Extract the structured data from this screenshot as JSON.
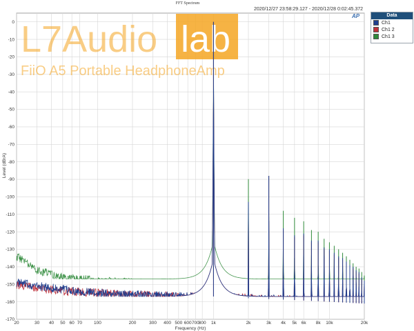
{
  "chart_data": {
    "type": "line",
    "title": "FFT Spectrum",
    "timestamp": "2020/12/27 23:58:29.127 - 2020/12/28 0:02:45.372",
    "xlabel": "Frequency (Hz)",
    "ylabel": "Level (dBrA)",
    "x_scale": "log",
    "xlim": [
      20,
      20000
    ],
    "ylim": [
      -170,
      5
    ],
    "x_ticks": [
      {
        "v": 20,
        "label": "20"
      },
      {
        "v": 30,
        "label": "30"
      },
      {
        "v": 40,
        "label": "40"
      },
      {
        "v": 50,
        "label": "50"
      },
      {
        "v": 60,
        "label": "60"
      },
      {
        "v": 70,
        "label": "70"
      },
      {
        "v": 100,
        "label": "100"
      },
      {
        "v": 200,
        "label": "200"
      },
      {
        "v": 300,
        "label": "300"
      },
      {
        "v": 400,
        "label": "400"
      },
      {
        "v": 500,
        "label": "500"
      },
      {
        "v": 600,
        "label": "600"
      },
      {
        "v": 700,
        "label": "700"
      },
      {
        "v": 800,
        "label": "800"
      },
      {
        "v": 1000,
        "label": "1k"
      },
      {
        "v": 2000,
        "label": "2k"
      },
      {
        "v": 3000,
        "label": "3k"
      },
      {
        "v": 4000,
        "label": "4k"
      },
      {
        "v": 5000,
        "label": "5k"
      },
      {
        "v": 6000,
        "label": "6k"
      },
      {
        "v": 8000,
        "label": "8k"
      },
      {
        "v": 10000,
        "label": "10k"
      },
      {
        "v": 20000,
        "label": "20k"
      }
    ],
    "y_ticks": [
      0,
      -10,
      -20,
      -30,
      -40,
      -50,
      -60,
      -70,
      -80,
      -90,
      -100,
      -110,
      -120,
      -130,
      -140,
      -150,
      -160,
      -170
    ],
    "grid": true,
    "legend_placement": "top-right-outside",
    "legend_title": "Data",
    "fundamental_hz": 1000,
    "series": [
      {
        "name": "Ch1",
        "color": "#1f3f8f",
        "noise_floor": [
          [
            20,
            -149
          ],
          [
            30,
            -151
          ],
          [
            50,
            -153
          ],
          [
            100,
            -155
          ],
          [
            200,
            -156
          ],
          [
            500,
            -157
          ],
          [
            1000,
            -157
          ],
          [
            2000,
            -158
          ],
          [
            5000,
            -159
          ],
          [
            10000,
            -160
          ],
          [
            20000,
            -161
          ]
        ],
        "peaks": [
          [
            1000,
            0
          ],
          [
            2000,
            -103
          ],
          [
            3000,
            -88
          ],
          [
            4000,
            -118
          ],
          [
            5000,
            -122
          ],
          [
            6000,
            -121
          ],
          [
            7000,
            -125
          ],
          [
            8000,
            -125
          ],
          [
            9000,
            -129
          ],
          [
            10000,
            -130
          ],
          [
            11000,
            -132
          ],
          [
            12000,
            -134
          ],
          [
            13000,
            -135
          ],
          [
            14000,
            -137
          ],
          [
            15000,
            -139
          ],
          [
            16000,
            -140
          ],
          [
            17000,
            -142
          ],
          [
            18000,
            -143
          ],
          [
            19000,
            -146
          ],
          [
            20000,
            -148
          ]
        ]
      },
      {
        "name": "Ch1 2",
        "color": "#c0303a",
        "noise_floor": [
          [
            20,
            -150
          ],
          [
            30,
            -152
          ],
          [
            50,
            -154
          ],
          [
            100,
            -155
          ],
          [
            200,
            -156
          ],
          [
            500,
            -157
          ],
          [
            1000,
            -157
          ],
          [
            2000,
            -158
          ],
          [
            5000,
            -159
          ],
          [
            10000,
            -160
          ],
          [
            20000,
            -161
          ]
        ],
        "peaks": [
          [
            1000,
            0
          ],
          [
            2000,
            -103
          ],
          [
            3000,
            -88
          ],
          [
            4000,
            -119
          ],
          [
            5000,
            -123
          ],
          [
            6000,
            -122
          ],
          [
            7000,
            -126
          ],
          [
            8000,
            -126
          ],
          [
            9000,
            -130
          ],
          [
            10000,
            -131
          ],
          [
            11000,
            -133
          ],
          [
            12000,
            -135
          ],
          [
            13000,
            -136
          ],
          [
            14000,
            -138
          ],
          [
            15000,
            -140
          ],
          [
            16000,
            -141
          ],
          [
            17000,
            -143
          ],
          [
            18000,
            -144
          ],
          [
            19000,
            -147
          ],
          [
            20000,
            -149
          ]
        ]
      },
      {
        "name": "Ch1 3",
        "color": "#2f8a3a",
        "noise_floor": [
          [
            20,
            -134
          ],
          [
            25,
            -138
          ],
          [
            30,
            -142
          ],
          [
            50,
            -146
          ],
          [
            100,
            -148
          ],
          [
            200,
            -149
          ],
          [
            500,
            -151
          ],
          [
            800,
            -149
          ],
          [
            1000,
            -147
          ],
          [
            1500,
            -151
          ],
          [
            2000,
            -150
          ],
          [
            3000,
            -152
          ],
          [
            5000,
            -153
          ],
          [
            10000,
            -155
          ],
          [
            20000,
            -156
          ]
        ],
        "peaks": [
          [
            1000,
            0
          ],
          [
            2000,
            -90
          ],
          [
            3000,
            -88
          ],
          [
            4000,
            -108
          ],
          [
            5000,
            -112
          ],
          [
            6000,
            -114
          ],
          [
            7000,
            -119
          ],
          [
            8000,
            -120
          ],
          [
            9000,
            -124
          ],
          [
            10000,
            -126
          ],
          [
            11000,
            -128
          ],
          [
            12000,
            -130
          ],
          [
            13000,
            -132
          ],
          [
            14000,
            -134
          ],
          [
            15000,
            -136
          ],
          [
            16000,
            -138
          ],
          [
            17000,
            -140
          ],
          [
            18000,
            -141
          ],
          [
            19000,
            -143
          ],
          [
            20000,
            -145
          ]
        ]
      }
    ]
  },
  "watermark": {
    "brand_left": "L7Audio",
    "brand_right": "lab",
    "product": "FiiO A5  Portable HeadphoneAmp",
    "accent_color": "#f5a623"
  },
  "ap_logo": "AP"
}
